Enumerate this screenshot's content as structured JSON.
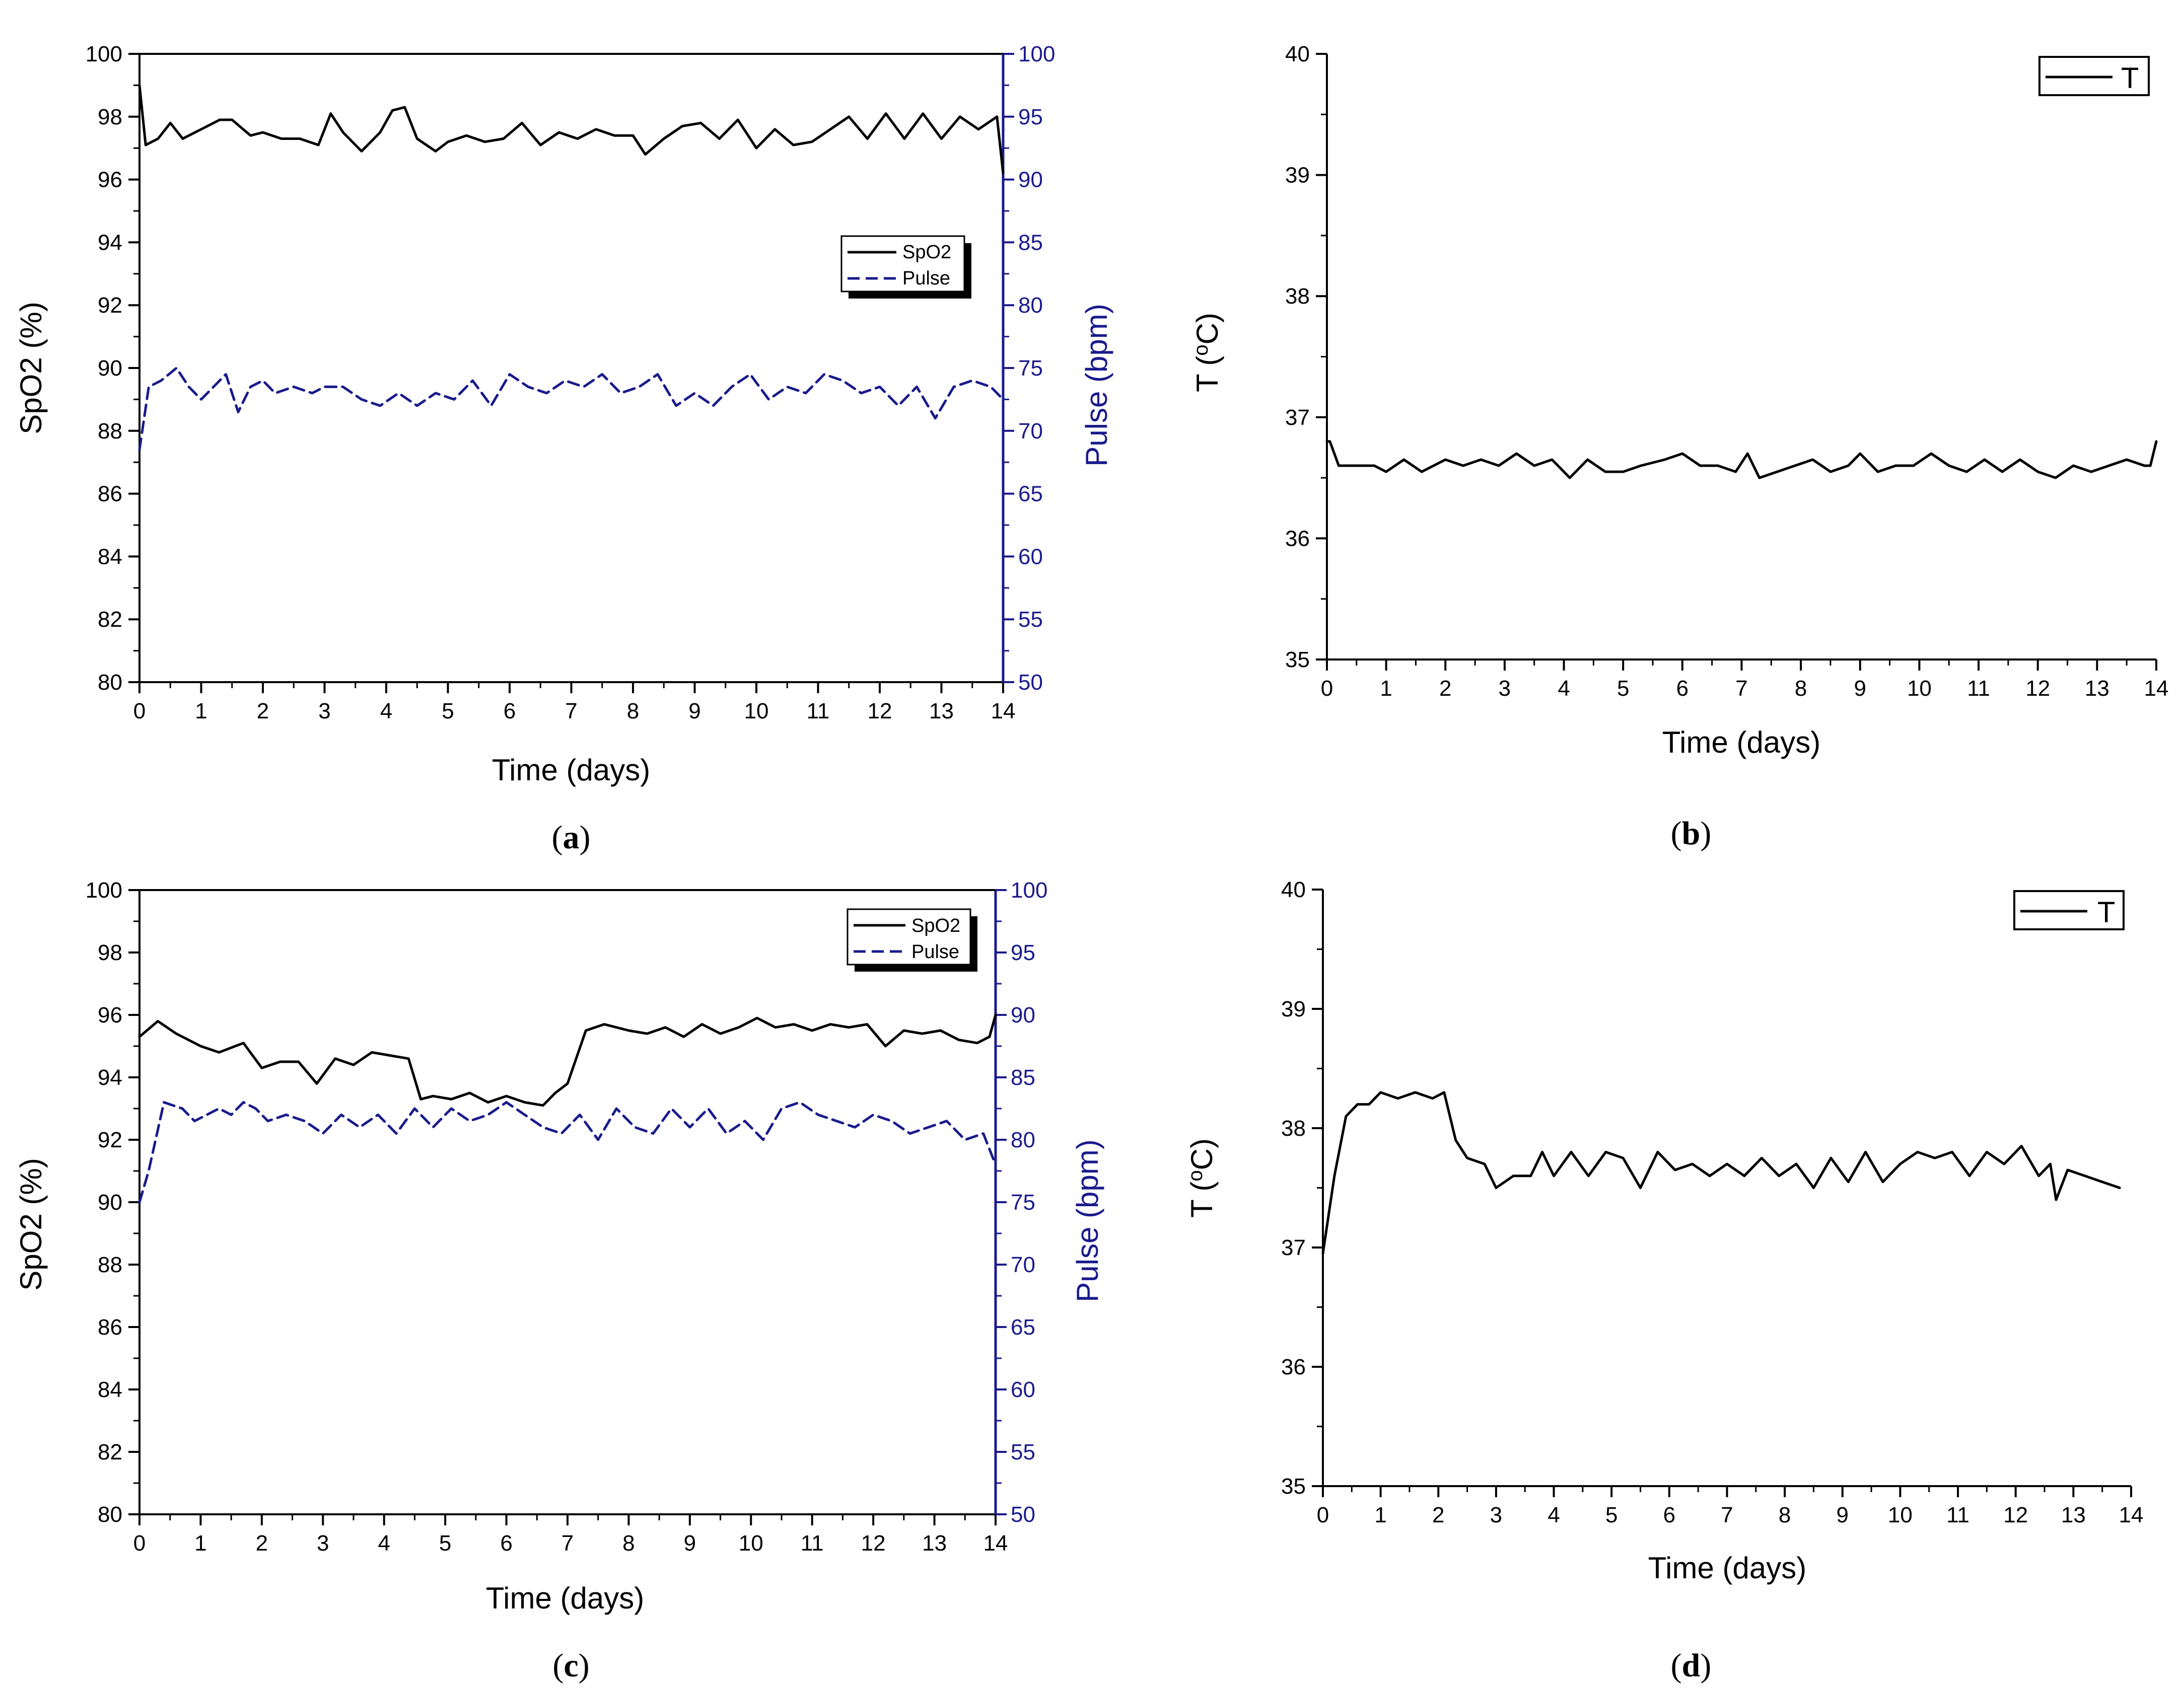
{
  "colors": {
    "spo2": "#000000",
    "pulse": "#1a1a8c",
    "temp": "#000000",
    "axis_blue": "#1a1a8c"
  },
  "chart_data": [
    {
      "id": "a",
      "type": "line",
      "caption_letter": "a",
      "xlabel": "Time (days)",
      "ylabel": "SpO2 (%)",
      "y2label": "Pulse (bpm)",
      "xlim": [
        0,
        14
      ],
      "ylim": [
        80,
        100
      ],
      "y2lim": [
        50,
        100
      ],
      "xticks": [
        "0",
        "1",
        "2",
        "3",
        "4",
        "5",
        "6",
        "7",
        "8",
        "9",
        "10",
        "11",
        "12",
        "13",
        "14"
      ],
      "yticks": [
        "80",
        "82",
        "84",
        "86",
        "88",
        "90",
        "92",
        "94",
        "96",
        "98",
        "100"
      ],
      "y2ticks": [
        "50",
        "55",
        "60",
        "65",
        "70",
        "75",
        "80",
        "85",
        "90",
        "95",
        "100"
      ],
      "legend": [
        "SpO2",
        "Pulse"
      ],
      "legend_position": "right-middle",
      "series": [
        {
          "name": "SpO2",
          "axis": "left",
          "style": "solid",
          "x": [
            0,
            0.1,
            0.3,
            0.5,
            0.7,
            1.0,
            1.3,
            1.5,
            1.8,
            2.0,
            2.3,
            2.6,
            2.9,
            3.1,
            3.3,
            3.6,
            3.9,
            4.1,
            4.3,
            4.5,
            4.8,
            5.0,
            5.3,
            5.6,
            5.9,
            6.2,
            6.5,
            6.8,
            7.1,
            7.4,
            7.7,
            8.0,
            8.2,
            8.5,
            8.8,
            9.1,
            9.4,
            9.7,
            10.0,
            10.3,
            10.6,
            10.9,
            11.2,
            11.5,
            11.8,
            12.1,
            12.4,
            12.7,
            13.0,
            13.3,
            13.6,
            13.9,
            14.0
          ],
          "values": [
            99.0,
            97.1,
            97.3,
            97.8,
            97.3,
            97.6,
            97.9,
            97.9,
            97.4,
            97.5,
            97.3,
            97.3,
            97.1,
            98.1,
            97.5,
            96.9,
            97.5,
            98.2,
            98.3,
            97.3,
            96.9,
            97.2,
            97.4,
            97.2,
            97.3,
            97.8,
            97.1,
            97.5,
            97.3,
            97.6,
            97.4,
            97.4,
            96.8,
            97.3,
            97.7,
            97.8,
            97.3,
            97.9,
            97.0,
            97.6,
            97.1,
            97.2,
            97.6,
            98.0,
            97.3,
            98.1,
            97.3,
            98.1,
            97.3,
            98.0,
            97.6,
            98.0,
            96.2
          ]
        },
        {
          "name": "Pulse",
          "axis": "right",
          "style": "dashed",
          "x": [
            0,
            0.15,
            0.35,
            0.6,
            0.8,
            1.0,
            1.2,
            1.4,
            1.6,
            1.8,
            2.0,
            2.2,
            2.5,
            2.8,
            3.0,
            3.3,
            3.6,
            3.9,
            4.2,
            4.5,
            4.8,
            5.1,
            5.4,
            5.7,
            6.0,
            6.3,
            6.6,
            6.9,
            7.2,
            7.5,
            7.8,
            8.1,
            8.4,
            8.7,
            9.0,
            9.3,
            9.6,
            9.9,
            10.2,
            10.5,
            10.8,
            11.1,
            11.4,
            11.7,
            12.0,
            12.3,
            12.6,
            12.9,
            13.2,
            13.5,
            13.8,
            14.0
          ],
          "values": [
            68.5,
            73.5,
            74.0,
            75.0,
            73.5,
            72.5,
            73.5,
            74.5,
            71.5,
            73.5,
            74.0,
            73.0,
            73.5,
            73.0,
            73.5,
            73.5,
            72.5,
            72.0,
            73.0,
            72.0,
            73.0,
            72.5,
            74.0,
            72.0,
            74.5,
            73.5,
            73.0,
            74.0,
            73.5,
            74.5,
            73.0,
            73.5,
            74.5,
            72.0,
            73.0,
            72.0,
            73.5,
            74.5,
            72.5,
            73.5,
            73.0,
            74.5,
            74.0,
            73.0,
            73.5,
            72.0,
            73.5,
            71.0,
            73.5,
            74.0,
            73.5,
            72.5
          ]
        }
      ]
    },
    {
      "id": "b",
      "type": "line",
      "caption_letter": "b",
      "xlabel": "Time (days)",
      "ylabel": "T (°C)",
      "xlim": [
        0,
        14
      ],
      "ylim": [
        35,
        40
      ],
      "xticks": [
        "0",
        "1",
        "2",
        "3",
        "4",
        "5",
        "6",
        "7",
        "8",
        "9",
        "10",
        "11",
        "12",
        "13",
        "14"
      ],
      "yticks": [
        "35",
        "36",
        "37",
        "38",
        "39",
        "40"
      ],
      "legend": [
        "T"
      ],
      "legend_position": "top-right",
      "series": [
        {
          "name": "T",
          "style": "solid",
          "x": [
            0,
            0.05,
            0.2,
            0.5,
            0.8,
            1.0,
            1.3,
            1.6,
            2.0,
            2.3,
            2.6,
            2.9,
            3.2,
            3.5,
            3.8,
            4.1,
            4.4,
            4.7,
            5.0,
            5.3,
            5.7,
            6.0,
            6.3,
            6.6,
            6.9,
            7.1,
            7.3,
            7.6,
            7.9,
            8.2,
            8.5,
            8.8,
            9.0,
            9.3,
            9.6,
            9.9,
            10.2,
            10.5,
            10.8,
            11.1,
            11.4,
            11.7,
            12.0,
            12.3,
            12.6,
            12.9,
            13.2,
            13.5,
            13.8,
            13.9,
            14.0
          ],
          "values": [
            36.8,
            36.8,
            36.6,
            36.6,
            36.6,
            36.55,
            36.65,
            36.55,
            36.65,
            36.6,
            36.65,
            36.6,
            36.7,
            36.6,
            36.65,
            36.5,
            36.65,
            36.55,
            36.55,
            36.6,
            36.65,
            36.7,
            36.6,
            36.6,
            36.55,
            36.7,
            36.5,
            36.55,
            36.6,
            36.65,
            36.55,
            36.6,
            36.7,
            36.55,
            36.6,
            36.6,
            36.7,
            36.6,
            36.55,
            36.65,
            36.55,
            36.65,
            36.55,
            36.5,
            36.6,
            36.55,
            36.6,
            36.65,
            36.6,
            36.6,
            36.8
          ]
        }
      ]
    },
    {
      "id": "c",
      "type": "line",
      "caption_letter": "c",
      "xlabel": "Time (days)",
      "ylabel": "SpO2 (%)",
      "y2label": "Pulse (bpm)",
      "xlim": [
        0,
        14
      ],
      "ylim": [
        80,
        100
      ],
      "y2lim": [
        50,
        100
      ],
      "xticks": [
        "0",
        "1",
        "2",
        "3",
        "4",
        "5",
        "6",
        "7",
        "8",
        "9",
        "10",
        "11",
        "12",
        "13",
        "14"
      ],
      "yticks": [
        "80",
        "82",
        "84",
        "86",
        "88",
        "90",
        "92",
        "94",
        "96",
        "98",
        "100"
      ],
      "y2ticks": [
        "50",
        "55",
        "60",
        "65",
        "70",
        "75",
        "80",
        "85",
        "90",
        "95",
        "100"
      ],
      "legend": [
        "SpO2",
        "Pulse"
      ],
      "legend_position": "top-right",
      "series": [
        {
          "name": "SpO2",
          "axis": "left",
          "style": "solid",
          "x": [
            0,
            0.3,
            0.6,
            1.0,
            1.3,
            1.7,
            2.0,
            2.3,
            2.6,
            2.9,
            3.2,
            3.5,
            3.8,
            4.1,
            4.4,
            4.6,
            4.8,
            5.1,
            5.4,
            5.7,
            6.0,
            6.3,
            6.6,
            6.8,
            7.0,
            7.3,
            7.6,
            8.0,
            8.3,
            8.6,
            8.9,
            9.2,
            9.5,
            9.8,
            10.1,
            10.4,
            10.7,
            11.0,
            11.3,
            11.6,
            11.9,
            12.2,
            12.5,
            12.8,
            13.1,
            13.4,
            13.7,
            13.9,
            14.0
          ],
          "values": [
            95.3,
            95.8,
            95.4,
            95.0,
            94.8,
            95.1,
            94.3,
            94.5,
            94.5,
            93.8,
            94.6,
            94.4,
            94.8,
            94.7,
            94.6,
            93.3,
            93.4,
            93.3,
            93.5,
            93.2,
            93.4,
            93.2,
            93.1,
            93.5,
            93.8,
            95.5,
            95.7,
            95.5,
            95.4,
            95.6,
            95.3,
            95.7,
            95.4,
            95.6,
            95.9,
            95.6,
            95.7,
            95.5,
            95.7,
            95.6,
            95.7,
            95.0,
            95.5,
            95.4,
            95.5,
            95.2,
            95.1,
            95.3,
            96.0
          ]
        },
        {
          "name": "Pulse",
          "axis": "right",
          "style": "dashed",
          "x": [
            0,
            0.15,
            0.4,
            0.7,
            0.9,
            1.1,
            1.3,
            1.5,
            1.7,
            1.9,
            2.1,
            2.4,
            2.7,
            3.0,
            3.3,
            3.6,
            3.9,
            4.2,
            4.5,
            4.8,
            5.1,
            5.4,
            5.7,
            6.0,
            6.3,
            6.6,
            6.9,
            7.2,
            7.5,
            7.8,
            8.1,
            8.4,
            8.7,
            9.0,
            9.3,
            9.6,
            9.9,
            10.2,
            10.5,
            10.8,
            11.1,
            11.4,
            11.7,
            12.0,
            12.3,
            12.6,
            12.9,
            13.2,
            13.5,
            13.8,
            14.0
          ],
          "values": [
            75.0,
            77.5,
            83.0,
            82.5,
            81.5,
            82.0,
            82.5,
            82.0,
            83.0,
            82.5,
            81.5,
            82.0,
            81.5,
            80.5,
            82.0,
            81.0,
            82.0,
            80.5,
            82.5,
            81.0,
            82.5,
            81.5,
            82.0,
            83.0,
            82.0,
            81.0,
            80.5,
            82.0,
            80.0,
            82.5,
            81.0,
            80.5,
            82.5,
            81.0,
            82.5,
            80.5,
            81.5,
            80.0,
            82.5,
            83.0,
            82.0,
            81.5,
            81.0,
            82.0,
            81.5,
            80.5,
            81.0,
            81.5,
            80.0,
            80.5,
            78.0
          ]
        }
      ]
    },
    {
      "id": "d",
      "type": "line",
      "caption_letter": "d",
      "xlabel": "Time (days)",
      "ylabel": "T (°C)",
      "xlim": [
        0,
        14
      ],
      "ylim": [
        35,
        40
      ],
      "xticks": [
        "0",
        "1",
        "2",
        "3",
        "4",
        "5",
        "6",
        "7",
        "8",
        "9",
        "10",
        "11",
        "12",
        "13",
        "14"
      ],
      "yticks": [
        "35",
        "36",
        "37",
        "38",
        "39",
        "40"
      ],
      "legend": [
        "T"
      ],
      "legend_position": "top-right",
      "series": [
        {
          "name": "T",
          "style": "solid",
          "x": [
            0,
            0.2,
            0.4,
            0.6,
            0.8,
            1.0,
            1.3,
            1.6,
            1.9,
            2.1,
            2.3,
            2.5,
            2.8,
            3.0,
            3.3,
            3.6,
            3.8,
            4.0,
            4.3,
            4.6,
            4.9,
            5.2,
            5.5,
            5.8,
            6.1,
            6.4,
            6.7,
            7.0,
            7.3,
            7.6,
            7.9,
            8.2,
            8.5,
            8.8,
            9.1,
            9.4,
            9.7,
            10.0,
            10.3,
            10.6,
            10.9,
            11.2,
            11.5,
            11.8,
            12.1,
            12.4,
            12.6,
            12.7,
            12.9,
            13.2,
            13.5,
            13.8
          ],
          "values": [
            36.95,
            37.6,
            38.1,
            38.2,
            38.2,
            38.3,
            38.25,
            38.3,
            38.25,
            38.3,
            37.9,
            37.75,
            37.7,
            37.5,
            37.6,
            37.6,
            37.8,
            37.6,
            37.8,
            37.6,
            37.8,
            37.75,
            37.5,
            37.8,
            37.65,
            37.7,
            37.6,
            37.7,
            37.6,
            37.75,
            37.6,
            37.7,
            37.5,
            37.75,
            37.55,
            37.8,
            37.55,
            37.7,
            37.8,
            37.75,
            37.8,
            37.6,
            37.8,
            37.7,
            37.85,
            37.6,
            37.7,
            37.4,
            37.65,
            37.6,
            37.55,
            37.5
          ]
        }
      ]
    }
  ]
}
